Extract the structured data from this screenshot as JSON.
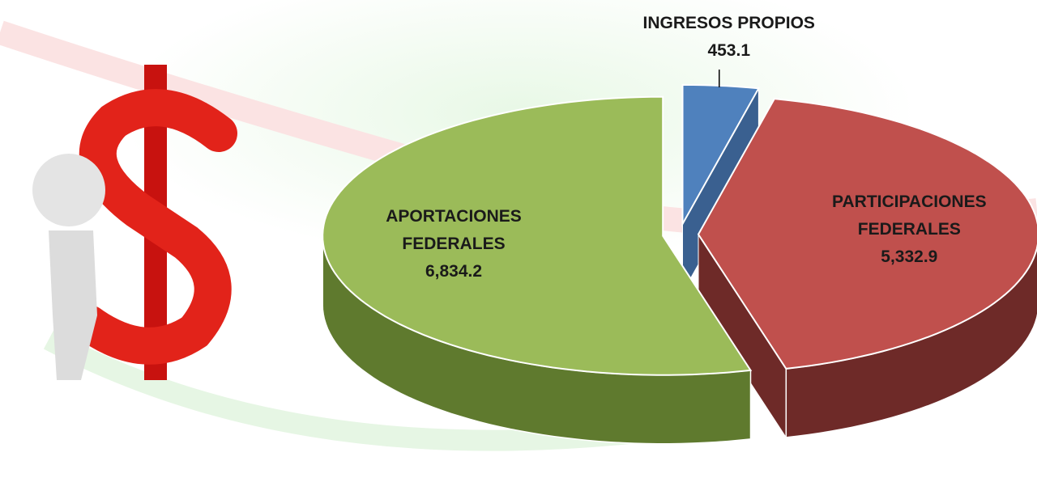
{
  "chart_data": {
    "type": "pie",
    "categories": [
      "INGRESOS PROPIOS",
      "PARTICIPACIONES FEDERALES",
      "APORTACIONES FEDERALES"
    ],
    "values": [
      453.1,
      5332.9,
      6834.2
    ],
    "value_labels": [
      "453.1",
      "5,332.9",
      "6,834.2"
    ],
    "colors": [
      "#4f81bd",
      "#c0504d",
      "#9bbb59"
    ],
    "side_colors": [
      "#3a6090",
      "#6e2a28",
      "#5f7a2e"
    ]
  }
}
